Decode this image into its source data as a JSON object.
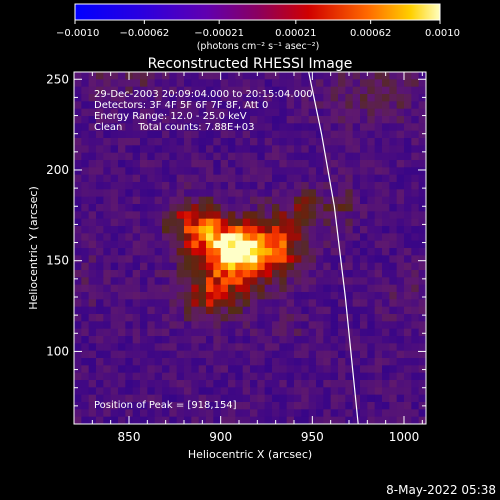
{
  "chart_data": {
    "type": "heatmap",
    "title": "Reconstructed RHESSI Image",
    "xlabel": "Heliocentric X (arcsec)",
    "ylabel": "Heliocentric Y (arcsec)",
    "xlim": [
      820,
      1012
    ],
    "ylim": [
      60,
      254
    ],
    "xticks": [
      850,
      900,
      950,
      1000
    ],
    "yticks": [
      100,
      150,
      200,
      250
    ],
    "xtick_labels": [
      "850",
      "900",
      "950",
      "1000"
    ],
    "ytick_labels": [
      "100",
      "150",
      "200",
      "250"
    ],
    "colorbar": {
      "range": [
        -0.001,
        0.001
      ],
      "ticks": [
        -0.001,
        -0.00062,
        -0.00021,
        0.00021,
        0.00062,
        0.001
      ],
      "tick_labels": [
        "−0.0010",
        "−0.00062",
        "−0.00021",
        "0.00021",
        "0.00062",
        "0.0010"
      ],
      "units_label": "(photons cm⁻² s⁻¹ asec⁻²)",
      "colormap": "rhessi-blue-purple-red-yellow"
    },
    "annotations": [
      "29-Dec-2003 20:09:04.000 to 20:15:04.000",
      "Detectors: 3F 4F 5F 6F 7F 8F, Att 0",
      "Energy Range: 12.0 - 25.0 keV",
      "Clean     Total counts: 7.88E+03"
    ],
    "peak_label": "Position of Peak = [918,154]",
    "peak": [
      918,
      154
    ],
    "sources": [
      {
        "x": 910,
        "y": 154,
        "sx": 15,
        "sy": 11,
        "amp": 1.0
      },
      {
        "x": 887,
        "y": 170,
        "sx": 12,
        "sy": 10,
        "amp": 0.55
      },
      {
        "x": 896,
        "y": 130,
        "sx": 14,
        "sy": 9,
        "amp": 0.45
      },
      {
        "x": 935,
        "y": 160,
        "sx": 12,
        "sy": 14,
        "amp": 0.35
      },
      {
        "x": 948,
        "y": 180,
        "sx": 10,
        "sy": 8,
        "amp": 0.25
      },
      {
        "x": 968,
        "y": 182,
        "sx": 5,
        "sy": 10,
        "amp": 0.18
      },
      {
        "x": 985,
        "y": 242,
        "sx": 18,
        "sy": 12,
        "amp": 0.22
      },
      {
        "x": 850,
        "y": 250,
        "sx": 20,
        "sy": 8,
        "amp": 0.15
      },
      {
        "x": 828,
        "y": 140,
        "sx": 6,
        "sy": 10,
        "amp": 0.12
      },
      {
        "x": 935,
        "y": 112,
        "sx": 8,
        "sy": 6,
        "amp": 0.12
      },
      {
        "x": 1000,
        "y": 130,
        "sx": 8,
        "sy": 10,
        "amp": 0.12
      }
    ],
    "limb_curve": [
      [
        948,
        254
      ],
      [
        955,
        220
      ],
      [
        962,
        180
      ],
      [
        968,
        130
      ],
      [
        972,
        90
      ],
      [
        975,
        60
      ]
    ]
  },
  "timestamp": "8-May-2022 05:38"
}
